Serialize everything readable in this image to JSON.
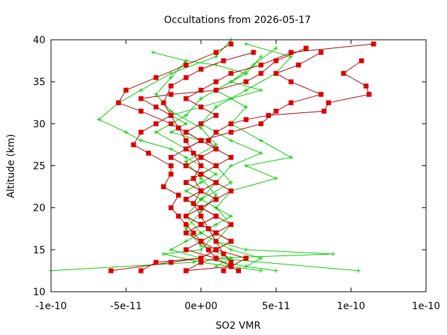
{
  "chart_data": {
    "type": "line",
    "title": "Occultations from 2026-05-17",
    "xlabel": "SO2 VMR",
    "ylabel": "Altitude (km)",
    "xlim": [
      -1e-10,
      1e-10
    ],
    "ylim": [
      10,
      40
    ],
    "x_tick_labels": [
      "-1e-10",
      "-5e-11",
      "0e+00",
      "5e-11",
      "1e-10",
      "1e-10"
    ],
    "x_tick_values": [
      -1e-10,
      -5e-11,
      0,
      5e-11,
      1e-10,
      1.5e-10
    ],
    "y_ticks": [
      10,
      15,
      20,
      25,
      30,
      35,
      40
    ],
    "grid": false,
    "legend": "none",
    "colors": {
      "green": "#00cc00",
      "red": "#dd0000",
      "darkred": "#aa0000"
    },
    "series": [
      {
        "color": "green",
        "marker": "plus",
        "points": [
          [
            -3.2e-11,
            38.5
          ],
          [
            -1e-11,
            37.5
          ],
          [
            1e-11,
            37
          ],
          [
            3e-11,
            36
          ],
          [
            2e-11,
            35
          ],
          [
            4e-11,
            34
          ],
          [
            2e-11,
            33
          ],
          [
            0,
            32
          ],
          [
            -2e-11,
            31
          ],
          [
            -1e-11,
            30
          ],
          [
            -2e-11,
            29
          ],
          [
            0,
            28
          ],
          [
            1e-11,
            27
          ],
          [
            2e-11,
            26
          ],
          [
            1e-11,
            25
          ],
          [
            0,
            24
          ],
          [
            -1e-11,
            23
          ],
          [
            0,
            22
          ],
          [
            1e-11,
            21
          ],
          [
            0,
            20
          ],
          [
            -1e-11,
            19
          ],
          [
            0,
            18
          ],
          [
            1e-11,
            17
          ],
          [
            2e-11,
            16
          ],
          [
            1e-11,
            15
          ],
          [
            0,
            14
          ],
          [
            -5e-12,
            13.5
          ],
          [
            -1e-10,
            12.5
          ]
        ]
      },
      {
        "color": "green",
        "marker": "plus",
        "points": [
          [
            2e-11,
            40
          ],
          [
            1e-11,
            38
          ],
          [
            -2e-11,
            36
          ],
          [
            -4e-11,
            34
          ],
          [
            -5.5e-11,
            32.5
          ],
          [
            -6.8e-11,
            30.5
          ],
          [
            -5e-11,
            29
          ],
          [
            -4e-11,
            28
          ],
          [
            -2e-11,
            27
          ],
          [
            -1e-11,
            26
          ],
          [
            0,
            25
          ],
          [
            1e-11,
            24
          ],
          [
            0,
            23
          ],
          [
            -1e-11,
            22
          ],
          [
            0,
            21
          ],
          [
            1e-11,
            20
          ],
          [
            2e-11,
            19
          ],
          [
            1e-11,
            18
          ],
          [
            0,
            17
          ],
          [
            -1e-11,
            16
          ],
          [
            -2e-11,
            15
          ],
          [
            0,
            14
          ],
          [
            3e-11,
            13
          ],
          [
            5e-11,
            12.5
          ]
        ]
      },
      {
        "color": "green",
        "marker": "plus",
        "points": [
          [
            4e-11,
            38
          ],
          [
            3e-11,
            36
          ],
          [
            1e-11,
            34
          ],
          [
            3e-11,
            32
          ],
          [
            2e-11,
            30
          ],
          [
            4e-11,
            28
          ],
          [
            6e-11,
            26
          ],
          [
            3e-11,
            25
          ],
          [
            5e-11,
            23.5
          ],
          [
            2e-11,
            22
          ],
          [
            1e-11,
            20
          ],
          [
            2e-11,
            18
          ],
          [
            1e-11,
            16
          ],
          [
            3e-11,
            15
          ],
          [
            8.8e-11,
            14.5
          ],
          [
            1e-11,
            14
          ],
          [
            1.05e-10,
            12.5
          ]
        ]
      },
      {
        "color": "green",
        "marker": "plus",
        "points": [
          [
            5e-11,
            39
          ],
          [
            3.5e-11,
            37
          ],
          [
            2e-11,
            35
          ],
          [
            0,
            33
          ],
          [
            -1e-11,
            31
          ],
          [
            -3e-11,
            29
          ],
          [
            -1e-11,
            27
          ],
          [
            1e-11,
            25
          ],
          [
            2e-11,
            23
          ],
          [
            0,
            21
          ],
          [
            -1e-11,
            19
          ],
          [
            1e-11,
            17
          ],
          [
            0,
            15
          ],
          [
            -2.5e-11,
            14.5
          ],
          [
            0,
            13.5
          ],
          [
            2e-11,
            13
          ],
          [
            4e-11,
            12.5
          ]
        ]
      },
      {
        "color": "green",
        "marker": "plus",
        "points": [
          [
            3e-11,
            39.5
          ],
          [
            6e-11,
            38
          ],
          [
            5e-11,
            36
          ],
          [
            3e-11,
            34
          ],
          [
            1e-11,
            32
          ],
          [
            0,
            30
          ],
          [
            2e-11,
            28
          ],
          [
            4e-11,
            26.5
          ],
          [
            2e-11,
            25
          ],
          [
            1e-11,
            23
          ],
          [
            0,
            21
          ],
          [
            -1e-11,
            19
          ],
          [
            0,
            17
          ],
          [
            2e-11,
            15
          ],
          [
            4e-11,
            14
          ],
          [
            3e-11,
            13
          ]
        ]
      },
      {
        "color": "green",
        "marker": "plus",
        "points": [
          [
            -1e-11,
            37.5
          ],
          [
            -2e-11,
            35.5
          ],
          [
            -3e-11,
            33.5
          ],
          [
            -2e-11,
            31.5
          ],
          [
            0,
            29.5
          ],
          [
            1e-11,
            27.5
          ],
          [
            -1e-11,
            25.5
          ],
          [
            0,
            23.5
          ],
          [
            1e-11,
            21.5
          ],
          [
            0,
            19.5
          ],
          [
            -1e-11,
            17.5
          ],
          [
            0,
            15.5
          ],
          [
            2e-11,
            14
          ],
          [
            1e-11,
            13
          ]
        ]
      },
      {
        "color": "red",
        "marker": "square",
        "points": [
          [
            2e-11,
            39.5
          ],
          [
            1e-11,
            38.5
          ],
          [
            -1e-11,
            37
          ],
          [
            -3e-11,
            35.5
          ],
          [
            -5e-11,
            34
          ],
          [
            -5.5e-11,
            32.5
          ],
          [
            -4e-11,
            31.5
          ],
          [
            -2e-11,
            30
          ],
          [
            -1e-11,
            29
          ],
          [
            0,
            28
          ],
          [
            -1e-11,
            27
          ],
          [
            -2e-11,
            26
          ],
          [
            -1e-11,
            25
          ],
          [
            0,
            24
          ],
          [
            1e-11,
            23
          ],
          [
            0,
            22
          ],
          [
            -1e-11,
            21
          ],
          [
            0,
            20
          ],
          [
            1e-11,
            19
          ],
          [
            0,
            18
          ],
          [
            -1e-11,
            17
          ],
          [
            0,
            16
          ],
          [
            1e-11,
            15
          ],
          [
            0,
            14
          ],
          [
            -2e-11,
            13.5
          ],
          [
            -6e-11,
            12.5
          ]
        ]
      },
      {
        "color": "red",
        "marker": "square",
        "points": [
          [
            1.15e-10,
            39.5
          ],
          [
            6e-11,
            38.5
          ],
          [
            4e-11,
            37
          ],
          [
            2e-11,
            36
          ],
          [
            1e-11,
            35
          ],
          [
            0,
            34
          ],
          [
            -1e-11,
            33
          ],
          [
            0,
            32
          ],
          [
            1e-11,
            31
          ],
          [
            0,
            30
          ],
          [
            -1e-11,
            29
          ],
          [
            0,
            28
          ],
          [
            1e-11,
            27
          ],
          [
            0,
            26
          ],
          [
            -1e-11,
            25
          ],
          [
            0,
            24
          ],
          [
            1e-11,
            23
          ],
          [
            0,
            22
          ],
          [
            -1e-11,
            21
          ],
          [
            0,
            20
          ],
          [
            1e-11,
            19
          ],
          [
            0,
            18
          ],
          [
            1e-11,
            17
          ],
          [
            2e-11,
            16
          ],
          [
            1e-11,
            15
          ],
          [
            0,
            14
          ],
          [
            -3e-11,
            13.5
          ],
          [
            -4e-11,
            12.5
          ]
        ]
      },
      {
        "color": "red",
        "marker": "square",
        "points": [
          [
            7e-11,
            39
          ],
          [
            5e-11,
            37.5
          ],
          [
            4e-11,
            36
          ],
          [
            3e-11,
            35
          ],
          [
            1e-11,
            34
          ],
          [
            -2e-11,
            33.5
          ],
          [
            -4e-11,
            33
          ],
          [
            -3e-11,
            32
          ],
          [
            -2e-11,
            31
          ],
          [
            -3e-11,
            30
          ],
          [
            -4e-11,
            29
          ],
          [
            -4.5e-11,
            27.5
          ],
          [
            -3.5e-11,
            26.5
          ],
          [
            -2e-11,
            25
          ],
          [
            -2e-11,
            24
          ],
          [
            -2.5e-11,
            22.5
          ],
          [
            -1.5e-11,
            21.5
          ],
          [
            -2e-11,
            20
          ],
          [
            -1.5e-11,
            19
          ],
          [
            -1e-11,
            18
          ],
          [
            -5e-12,
            17
          ],
          [
            0,
            16
          ],
          [
            5e-12,
            15
          ],
          [
            1e-11,
            14
          ],
          [
            0,
            13.5
          ],
          [
            -1e-11,
            12.5
          ]
        ]
      },
      {
        "color": "red",
        "marker": "square",
        "points": [
          [
            1.07e-10,
            37.5
          ],
          [
            9.5e-11,
            36
          ],
          [
            1.1e-10,
            34.5
          ],
          [
            1.12e-10,
            33.5
          ],
          [
            8.5e-11,
            32.5
          ],
          [
            8.2e-11,
            31.5
          ],
          [
            4.5e-11,
            31
          ],
          [
            3e-11,
            30.5
          ],
          [
            2e-11,
            30
          ],
          [
            1e-11,
            29
          ],
          [
            5e-12,
            28
          ],
          [
            1e-11,
            27
          ],
          [
            2e-11,
            26
          ],
          [
            1e-11,
            25
          ],
          [
            0,
            24
          ],
          [
            1e-11,
            23
          ],
          [
            2e-11,
            22
          ],
          [
            1e-11,
            21
          ],
          [
            0,
            20
          ],
          [
            1e-11,
            19
          ],
          [
            2e-11,
            18
          ],
          [
            1e-11,
            17
          ],
          [
            2e-11,
            16
          ],
          [
            1e-11,
            15
          ],
          [
            3e-11,
            14
          ],
          [
            2e-11,
            13
          ],
          [
            2.5e-11,
            12.5
          ]
        ]
      },
      {
        "color": "red",
        "marker": "square",
        "points": [
          [
            8e-11,
            38.5
          ],
          [
            6.5e-11,
            37
          ],
          [
            5e-11,
            36
          ],
          [
            6e-11,
            35
          ],
          [
            8e-11,
            33.5
          ],
          [
            6e-11,
            32.5
          ],
          [
            5e-11,
            31.5
          ],
          [
            4e-11,
            30
          ],
          [
            2e-11,
            29
          ],
          [
            0,
            28
          ],
          [
            -1e-11,
            27
          ],
          [
            0,
            26
          ],
          [
            1e-11,
            25
          ],
          [
            0,
            24
          ],
          [
            -1e-11,
            23
          ],
          [
            0,
            22
          ],
          [
            1e-11,
            21
          ],
          [
            0,
            20
          ],
          [
            -1e-11,
            19
          ],
          [
            0,
            18
          ],
          [
            1e-11,
            17
          ],
          [
            0,
            16
          ],
          [
            -1e-11,
            15
          ],
          [
            1e-11,
            14
          ],
          [
            2e-11,
            13
          ],
          [
            -1e-11,
            12.5
          ]
        ]
      },
      {
        "color": "red",
        "marker": "square",
        "points": [
          [
            3.5e-11,
            38.5
          ],
          [
            1.5e-11,
            37.5
          ],
          [
            0,
            36.5
          ],
          [
            -1e-11,
            35.5
          ],
          [
            -2e-11,
            34.5
          ],
          [
            -2.5e-11,
            32.5
          ],
          [
            -2e-11,
            31
          ],
          [
            -1.5e-11,
            29.5
          ],
          [
            -1e-11,
            28
          ],
          [
            -5e-12,
            26.5
          ],
          [
            0,
            25
          ],
          [
            -5e-12,
            23.5
          ],
          [
            0,
            22
          ],
          [
            -5e-12,
            20.5
          ],
          [
            0,
            19
          ],
          [
            5e-12,
            17.5
          ],
          [
            1e-11,
            16
          ],
          [
            1.5e-11,
            14.5
          ],
          [
            2e-11,
            13.5
          ],
          [
            1.5e-11,
            12.5
          ]
        ]
      }
    ]
  }
}
